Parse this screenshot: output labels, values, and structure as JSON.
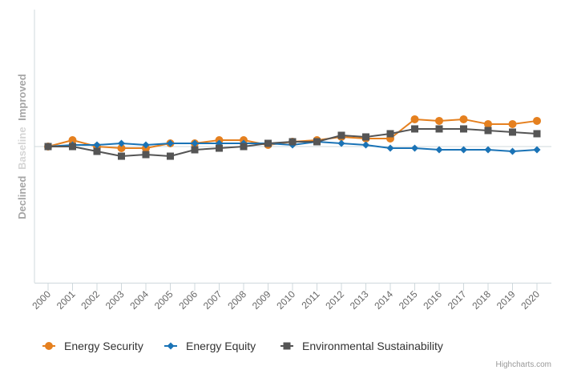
{
  "chart_data": {
    "type": "line",
    "title": "",
    "xlabel": "",
    "ylabel": {
      "low": "Declined",
      "mid": "Baseline",
      "high": "Improved"
    },
    "categories": [
      "2000",
      "2001",
      "2002",
      "2003",
      "2004",
      "2005",
      "2006",
      "2007",
      "2008",
      "2009",
      "2010",
      "2011",
      "2012",
      "2013",
      "2014",
      "2015",
      "2016",
      "2017",
      "2018",
      "2019",
      "2020"
    ],
    "baseline": 0,
    "ylim": [
      -8,
      8
    ],
    "series": [
      {
        "name": "Energy Security",
        "color": "#e5801f",
        "marker": "circle",
        "values": [
          0.0,
          0.4,
          0.0,
          -0.1,
          -0.1,
          0.2,
          0.2,
          0.4,
          0.4,
          0.1,
          0.3,
          0.4,
          0.6,
          0.5,
          0.5,
          1.7,
          1.6,
          1.7,
          1.4,
          1.4,
          1.6
        ]
      },
      {
        "name": "Energy Equity",
        "color": "#1a73b6",
        "marker": "diamond",
        "values": [
          0.0,
          0.1,
          0.1,
          0.2,
          0.1,
          0.2,
          0.2,
          0.2,
          0.2,
          0.2,
          0.1,
          0.3,
          0.2,
          0.1,
          -0.1,
          -0.1,
          -0.2,
          -0.2,
          -0.2,
          -0.3,
          -0.2
        ]
      },
      {
        "name": "Environmental Sustainability",
        "color": "#555555",
        "marker": "square",
        "values": [
          0.0,
          0.0,
          -0.3,
          -0.6,
          -0.5,
          -0.6,
          -0.2,
          -0.1,
          0.0,
          0.2,
          0.3,
          0.3,
          0.7,
          0.6,
          0.8,
          1.1,
          1.1,
          1.1,
          1.0,
          0.9,
          0.8
        ]
      }
    ],
    "credit": "Highcharts.com"
  }
}
